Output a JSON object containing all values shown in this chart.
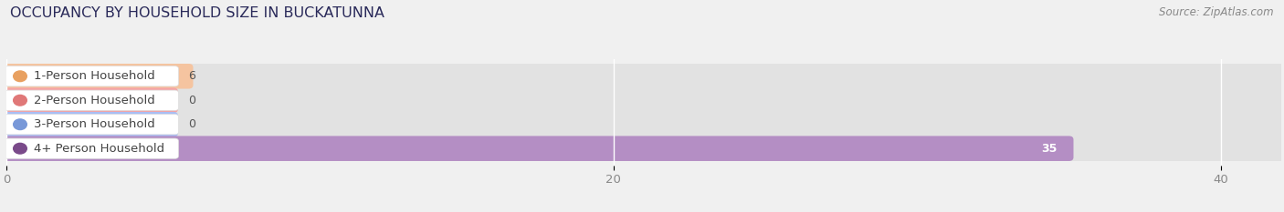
{
  "title": "OCCUPANCY BY HOUSEHOLD SIZE IN BUCKATUNNA",
  "source": "Source: ZipAtlas.com",
  "categories": [
    "1-Person Household",
    "2-Person Household",
    "3-Person Household",
    "4+ Person Household"
  ],
  "values": [
    6,
    0,
    0,
    35
  ],
  "bar_colors": [
    "#f5c4a0",
    "#f5a5a5",
    "#a8bef5",
    "#b48ec4"
  ],
  "dot_colors": [
    "#e8a060",
    "#e07878",
    "#7898d8",
    "#7a4a8a"
  ],
  "xlim": [
    0,
    42
  ],
  "xticks": [
    0,
    20,
    40
  ],
  "bg_color": "#f0f0f0",
  "bar_bg_color": "#e2e2e2",
  "white_label_bg": "#ffffff",
  "title_fontsize": 11.5,
  "label_fontsize": 9.5,
  "value_fontsize": 9,
  "source_fontsize": 8.5
}
